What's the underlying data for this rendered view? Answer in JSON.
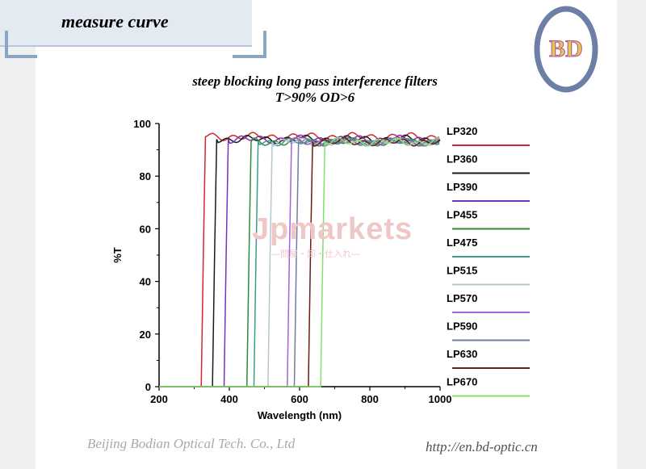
{
  "header": {
    "title": "measure curve"
  },
  "logo": {
    "text": "BD"
  },
  "watermark": {
    "main": "Jpmarkets",
    "sub": "—問屋・卸・仕入れ—"
  },
  "footer": {
    "company": "Beijing Bodian Optical Tech. Co., Ltd",
    "url": "http://en.bd-optic.cn"
  },
  "chart_data": {
    "type": "line",
    "title": "steep blocking long pass interference filters",
    "subtitle": "T>90% OD>6",
    "xlabel": "Wavelength (nm)",
    "ylabel": "%T",
    "xlim": [
      200,
      1000
    ],
    "ylim": [
      0,
      100
    ],
    "xticks": [
      200,
      400,
      600,
      800,
      1000
    ],
    "yticks": [
      0,
      20,
      40,
      60,
      80,
      100
    ],
    "grid": false,
    "legend_position": "right",
    "series": [
      {
        "name": "LP320",
        "color": "#d0282e",
        "x": [
          200,
          320,
          326,
          332,
          1000
        ],
        "y": [
          0,
          0,
          50,
          95,
          95
        ]
      },
      {
        "name": "LP360",
        "color": "#1a1a1a",
        "x": [
          200,
          352,
          358,
          364,
          1000
        ],
        "y": [
          0,
          0,
          50,
          94,
          94
        ]
      },
      {
        "name": "LP390",
        "color": "#7b2fbf",
        "x": [
          200,
          385,
          391,
          397,
          1000
        ],
        "y": [
          0,
          0,
          50,
          94,
          94
        ]
      },
      {
        "name": "LP455",
        "color": "#2e8b3a",
        "x": [
          200,
          450,
          456,
          462,
          1000
        ],
        "y": [
          0,
          0,
          50,
          93,
          93
        ]
      },
      {
        "name": "LP475",
        "color": "#3f9c8a",
        "x": [
          200,
          470,
          476,
          482,
          1000
        ],
        "y": [
          0,
          0,
          50,
          93,
          93
        ]
      },
      {
        "name": "LP515",
        "color": "#b4c7cf",
        "x": [
          200,
          510,
          516,
          522,
          1000
        ],
        "y": [
          0,
          0,
          50,
          93,
          93
        ]
      },
      {
        "name": "LP570",
        "color": "#a463d6",
        "x": [
          200,
          565,
          571,
          577,
          1000
        ],
        "y": [
          0,
          0,
          50,
          93,
          93
        ]
      },
      {
        "name": "LP590",
        "color": "#6f7fa0",
        "x": [
          200,
          585,
          591,
          597,
          1000
        ],
        "y": [
          0,
          0,
          50,
          93,
          93
        ]
      },
      {
        "name": "LP630",
        "color": "#6b1c1c",
        "x": [
          200,
          625,
          631,
          637,
          1000
        ],
        "y": [
          0,
          0,
          50,
          93,
          93
        ]
      },
      {
        "name": "LP670",
        "color": "#7fe36a",
        "x": [
          200,
          660,
          666,
          672,
          1000
        ],
        "y": [
          0,
          0,
          50,
          93,
          93
        ]
      }
    ]
  }
}
